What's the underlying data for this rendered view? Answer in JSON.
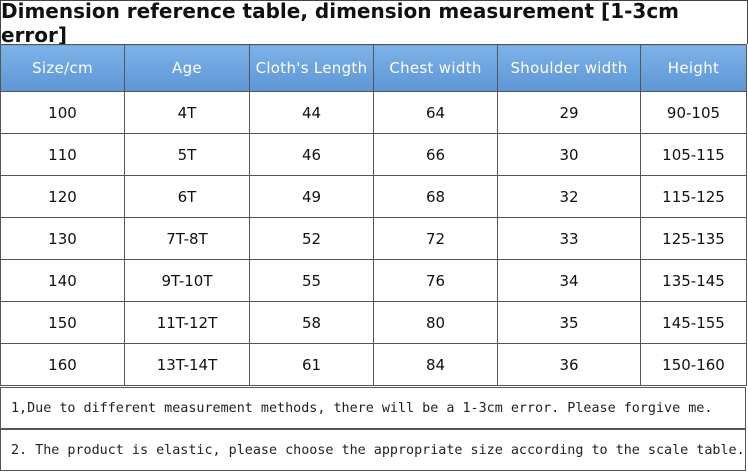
{
  "title": "Dimension reference table, dimension measurement [1-3cm error]",
  "table": {
    "header": [
      "Size/cm",
      "Age",
      "Cloth's Length",
      "Chest  width",
      "Shoulder  width",
      "Height"
    ],
    "rows": [
      [
        "100",
        "4T",
        "44",
        "64",
        "29",
        "90-105"
      ],
      [
        "110",
        "5T",
        "46",
        "66",
        "30",
        "105-115"
      ],
      [
        "120",
        "6T",
        "49",
        "68",
        "32",
        "115-125"
      ],
      [
        "130",
        "7T-8T",
        "52",
        "72",
        "33",
        "125-135"
      ],
      [
        "140",
        "9T-10T",
        "55",
        "76",
        "34",
        "135-145"
      ],
      [
        "150",
        "11T-12T",
        "58",
        "80",
        "35",
        "145-155"
      ],
      [
        "160",
        "13T-14T",
        "61",
        "84",
        "36",
        "150-160"
      ]
    ]
  },
  "notes": [
    "1,Due to different measurement methods, there will be a 1-3cm error. Please forgive me.",
    "2. The product is elastic, please choose the appropriate size according to the scale table."
  ]
}
